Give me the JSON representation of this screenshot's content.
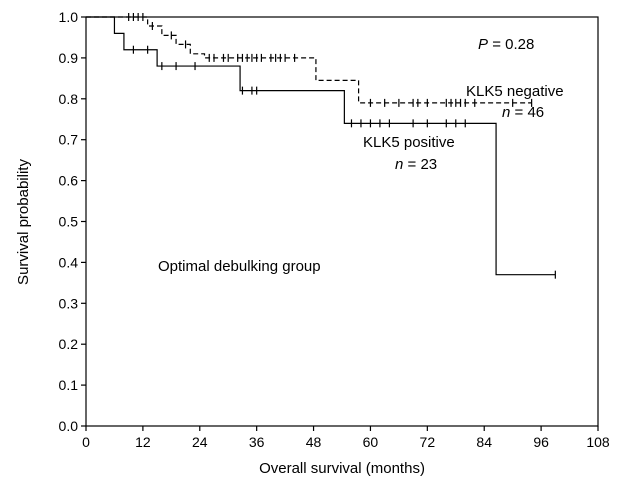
{
  "chart_data": {
    "type": "line",
    "chart_kind": "kaplan-meier survival curve",
    "title": "",
    "xlabel": "Overall survival (months)",
    "ylabel": "Survival probability",
    "xlim": [
      0,
      108
    ],
    "ylim": [
      0,
      1.0
    ],
    "x_ticks": [
      0,
      12,
      24,
      36,
      48,
      60,
      72,
      84,
      96,
      108
    ],
    "y_ticks": [
      0.0,
      0.1,
      0.2,
      0.3,
      0.4,
      0.5,
      0.6,
      0.7,
      0.8,
      0.9,
      1.0
    ],
    "grid": false,
    "legend": "none",
    "series": [
      {
        "line_style": "dashed",
        "color": "#000000",
        "steps": [
          [
            0,
            1.0
          ],
          [
            13,
            0.978
          ],
          [
            16,
            0.955
          ],
          [
            19,
            0.933
          ],
          [
            22,
            0.91
          ],
          [
            25,
            0.9
          ],
          [
            48.5,
            0.9
          ],
          [
            48.5,
            0.845
          ],
          [
            57.5,
            0.845
          ],
          [
            57.5,
            0.79
          ],
          [
            94,
            0.79
          ]
        ],
        "censored": [
          9,
          10,
          11,
          12,
          14,
          18,
          21,
          26,
          27,
          29,
          30,
          32,
          33,
          34,
          35,
          36,
          37,
          39,
          40,
          41,
          42,
          44,
          60,
          63,
          66,
          69,
          70,
          72,
          76,
          77,
          78,
          79,
          80,
          82,
          90,
          94
        ]
      },
      {
        "line_style": "solid",
        "color": "#000000",
        "steps": [
          [
            0,
            1.0
          ],
          [
            6,
            1.0
          ],
          [
            6,
            0.96
          ],
          [
            8,
            0.96
          ],
          [
            8,
            0.92
          ],
          [
            15,
            0.92
          ],
          [
            15,
            0.88
          ],
          [
            32.5,
            0.88
          ],
          [
            32.5,
            0.82
          ],
          [
            54.5,
            0.82
          ],
          [
            54.5,
            0.74
          ],
          [
            86.5,
            0.74
          ],
          [
            86.5,
            0.37
          ],
          [
            99,
            0.37
          ]
        ],
        "censored": [
          10,
          13,
          16,
          19,
          23,
          33,
          35,
          36,
          56,
          58,
          60,
          62,
          64,
          69,
          72,
          76,
          78,
          80,
          99
        ]
      }
    ],
    "annotations": {
      "p_value": "= 0.28",
      "p_symbol": "P",
      "neg_label": "KLK5 negative",
      "neg_n": "= 46",
      "pos_label": "KLK5 positive",
      "pos_n": "= 23",
      "n_symbol": "n",
      "group_label": "Optimal debulking group"
    }
  }
}
